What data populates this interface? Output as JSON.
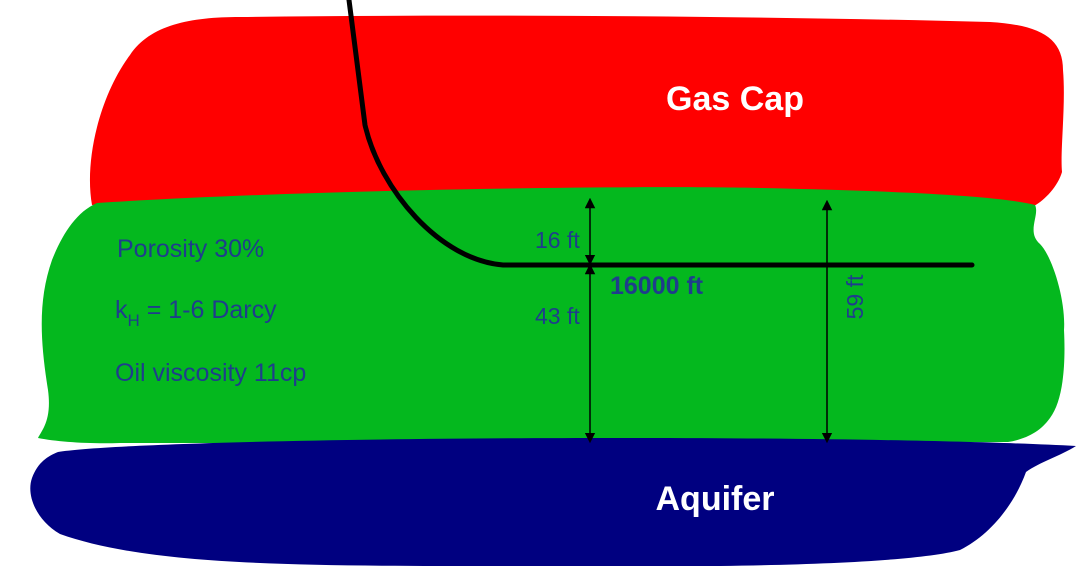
{
  "colors": {
    "gas_cap": "#ff0000",
    "oil_zone": "#04b81e",
    "aquifer": "#000080",
    "well": "#000000",
    "label_text": "#1f3d8c",
    "zone_title_text": "#ffffff"
  },
  "zones": {
    "gas_cap": {
      "title": "Gas Cap"
    },
    "oil_zone": {
      "properties": {
        "porosity": "Porosity  30%",
        "permeability_symbol": "k",
        "permeability_subscript": "H",
        "permeability_value": " = 1-6 Darcy",
        "viscosity": "Oil viscosity  11cp"
      }
    },
    "aquifer": {
      "title": "Aquifer"
    }
  },
  "well": {
    "horizontal_length": "16000 ft"
  },
  "dimensions": {
    "above_well": "16 ft",
    "below_well": "43 ft",
    "total_thickness": "59 ft"
  }
}
